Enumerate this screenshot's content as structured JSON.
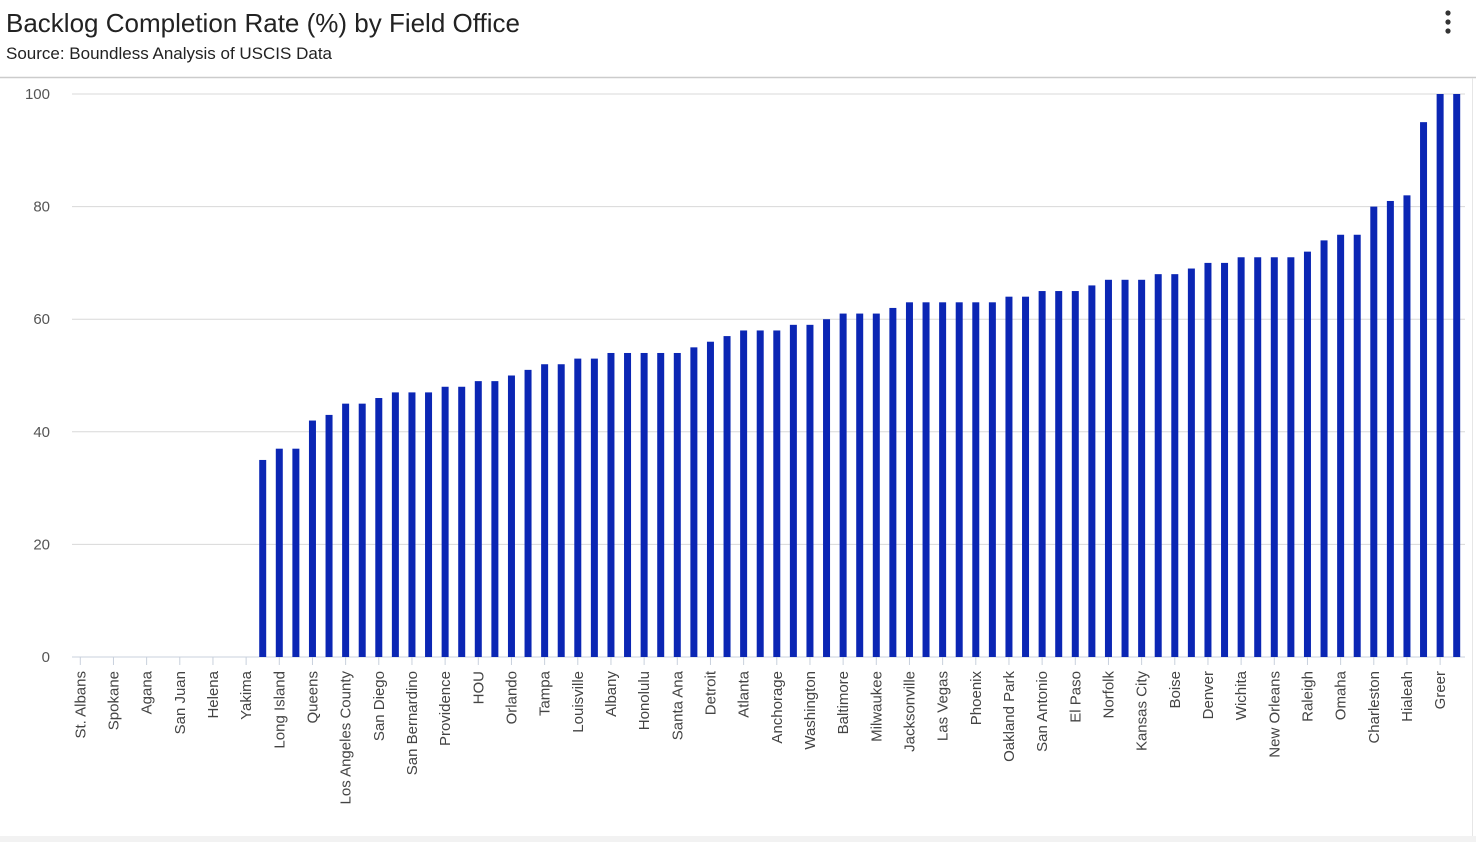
{
  "chart_data": {
    "type": "bar",
    "title": "Backlog Completion Rate (%) by Field Office",
    "subtitle": "Source: Boundless Analysis of USCIS Data",
    "categories": [
      "St. Albans",
      null,
      "Spokane",
      null,
      "Agana",
      null,
      "San Juan",
      null,
      "Helena",
      null,
      "Yakima",
      null,
      "Long Island",
      null,
      "Queens",
      null,
      "Los Angeles County",
      null,
      "San Diego",
      null,
      "San Bernardino",
      null,
      "Providence",
      null,
      "HOU",
      null,
      "Orlando",
      null,
      "Tampa",
      null,
      "Louisville",
      null,
      "Albany",
      null,
      "Honolulu",
      null,
      "Santa Ana",
      null,
      "Detroit",
      null,
      "Atlanta",
      null,
      "Anchorage",
      null,
      "Washington",
      null,
      "Baltimore",
      null,
      "Milwaukee",
      null,
      "Jacksonville",
      null,
      "Las Vegas",
      null,
      "Phoenix",
      null,
      "Oakland Park",
      null,
      "San Antonio",
      null,
      "El Paso",
      null,
      "Norfolk",
      null,
      "Kansas City",
      null,
      "Boise",
      null,
      "Denver",
      null,
      "Wichita",
      null,
      "New Orleans",
      null,
      "Raleigh",
      null,
      "Omaha",
      null,
      "Charleston",
      null,
      "Hialeah",
      null,
      "Greer",
      null
    ],
    "values": [
      0,
      0,
      0,
      0,
      0,
      0,
      0,
      0,
      0,
      0,
      0,
      35,
      37,
      37,
      42,
      43,
      45,
      45,
      46,
      47,
      47,
      47,
      48,
      48,
      49,
      49,
      50,
      51,
      52,
      52,
      53,
      53,
      54,
      54,
      54,
      54,
      54,
      55,
      56,
      57,
      58,
      58,
      58,
      59,
      59,
      60,
      61,
      61,
      61,
      62,
      63,
      63,
      63,
      63,
      63,
      63,
      64,
      64,
      65,
      65,
      65,
      66,
      67,
      67,
      67,
      68,
      68,
      69,
      70,
      70,
      71,
      71,
      71,
      71,
      72,
      74,
      75,
      75,
      80,
      81,
      82,
      95,
      100,
      100
    ],
    "color": "#0b26b4",
    "ylim": [
      0,
      100
    ],
    "yticks": [
      0,
      20,
      40,
      60,
      80,
      100
    ],
    "grid": true
  }
}
